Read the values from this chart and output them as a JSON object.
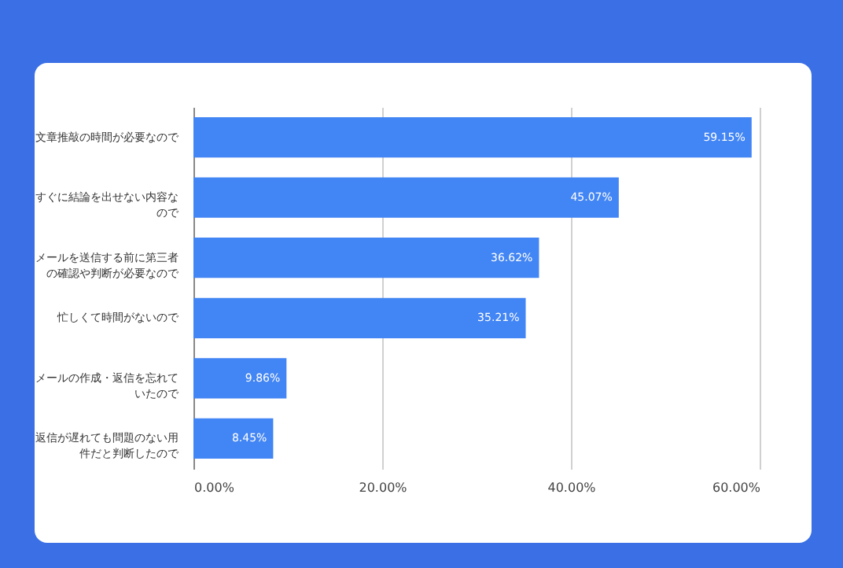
{
  "chart_data": {
    "type": "bar",
    "orientation": "horizontal",
    "categories": [
      "文章推敲の時間が必要なので",
      "すぐに結論を出せない内容なので",
      "メールを送信する前に第三者の確認や判断が必要なので",
      "忙しくて時間がないので",
      "メールの作成・返信を忘れていたので",
      "返信が遅れても問題のない用件だと判断したので"
    ],
    "values": [
      59.15,
      45.07,
      36.62,
      35.21,
      9.86,
      8.45
    ],
    "value_labels": [
      "59.15%",
      "45.07%",
      "36.62%",
      "35.21%",
      "9.86%",
      "8.45%"
    ],
    "color": "#4285f4",
    "xlim": [
      0,
      60
    ],
    "xticks": [
      {
        "value": 0,
        "label": "0.00%"
      },
      {
        "value": 20,
        "label": "20.00%"
      },
      {
        "value": 40,
        "label": "40.00%"
      },
      {
        "value": 60,
        "label": "60.00%"
      }
    ],
    "grid": "x"
  }
}
